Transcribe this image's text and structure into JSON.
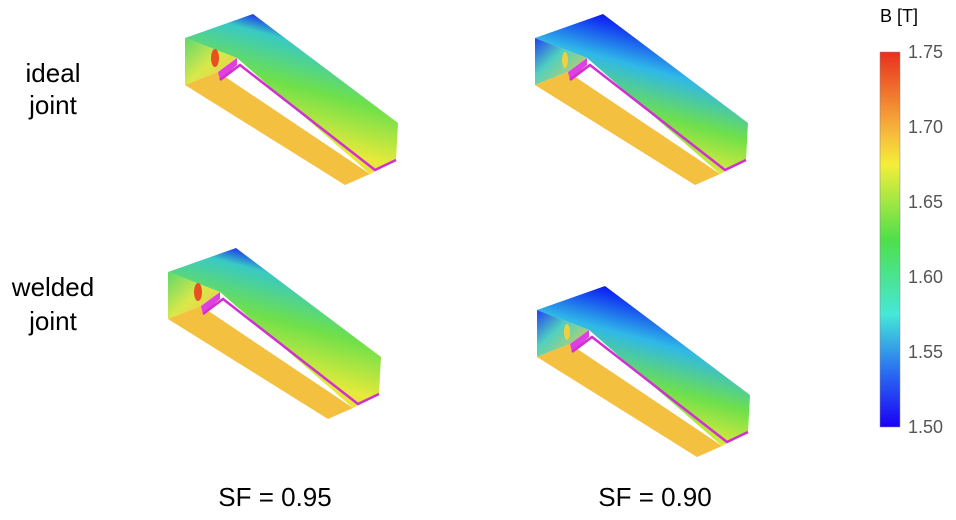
{
  "row_labels": [
    [
      "ideal",
      "joint"
    ],
    [
      "welded",
      "joint"
    ]
  ],
  "column_labels": [
    "SF = 0.95",
    "SF = 0.90"
  ],
  "colorbar": {
    "title": "B [T]",
    "ticks": [
      "1.75",
      "1.70",
      "1.65",
      "1.60",
      "1.55",
      "1.50"
    ]
  }
}
